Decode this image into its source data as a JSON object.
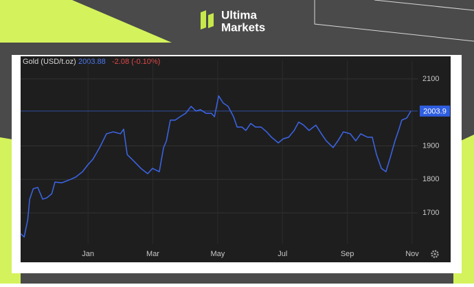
{
  "brand": {
    "line1": "Ultima",
    "line2": "Markets"
  },
  "chart_data": {
    "type": "line",
    "title": "Gold (USD/t.oz)",
    "last_value": 2003.88,
    "change_label": "-2.08 (-0.10%)",
    "price_label": 2003.9,
    "x": [
      -2.08,
      -1.97,
      -1.86,
      -1.8,
      -1.69,
      -1.55,
      -1.4,
      -1.27,
      -1.12,
      -1.02,
      -0.81,
      -0.59,
      -0.38,
      -0.17,
      0,
      0.15,
      0.36,
      0.57,
      0.78,
      1.0,
      1.1,
      1.21,
      1.42,
      1.63,
      1.84,
      1.99,
      2.2,
      2.33,
      2.42,
      2.54,
      2.69,
      2.84,
      3.01,
      3.18,
      3.33,
      3.47,
      3.64,
      3.81,
      3.9,
      4.03,
      4.17,
      4.32,
      4.49,
      4.6,
      4.75,
      4.87,
      5.02,
      5.17,
      5.34,
      5.51,
      5.66,
      5.87,
      6.02,
      6.19,
      6.36,
      6.5,
      6.65,
      6.82,
      7.03,
      7.2,
      7.35,
      7.56,
      7.71,
      7.88,
      8.09,
      8.26,
      8.41,
      8.62,
      8.77,
      8.9,
      9.05,
      9.19,
      9.32,
      9.47,
      9.58,
      9.68,
      9.83,
      9.96
    ],
    "series": [
      {
        "name": "Gold (USD/t.oz)",
        "color": "#3b63e0",
        "values": [
          1638,
          1628,
          1680,
          1741,
          1772,
          1776,
          1741,
          1745,
          1757,
          1792,
          1790,
          1798,
          1807,
          1823,
          1844,
          1860,
          1895,
          1936,
          1942,
          1936,
          1950,
          1874,
          1854,
          1833,
          1817,
          1833,
          1823,
          1895,
          1915,
          1977,
          1977,
          1987,
          1997,
          2018,
          2004,
          2008,
          1997,
          1997,
          1987,
          2049,
          2028,
          2018,
          1987,
          1956,
          1956,
          1946,
          1967,
          1956,
          1956,
          1942,
          1926,
          1909,
          1921,
          1926,
          1946,
          1971,
          1962,
          1946,
          1962,
          1936,
          1915,
          1895,
          1915,
          1942,
          1936,
          1915,
          1936,
          1926,
          1926,
          1874,
          1833,
          1823,
          1864,
          1915,
          1946,
          1977,
          1983,
          2003.88
        ]
      }
    ],
    "xlim": [
      -2.08,
      10.17
    ],
    "xticks": [
      {
        "value": 0,
        "label": "Jan"
      },
      {
        "value": 2,
        "label": "Mar"
      },
      {
        "value": 4,
        "label": "May"
      },
      {
        "value": 6,
        "label": "Jul"
      },
      {
        "value": 8,
        "label": "Sep"
      },
      {
        "value": 10,
        "label": "Nov"
      }
    ],
    "ylim": [
      1608,
      2155
    ],
    "yticks": [
      1700,
      1800,
      1900,
      2100
    ],
    "grid": true
  }
}
